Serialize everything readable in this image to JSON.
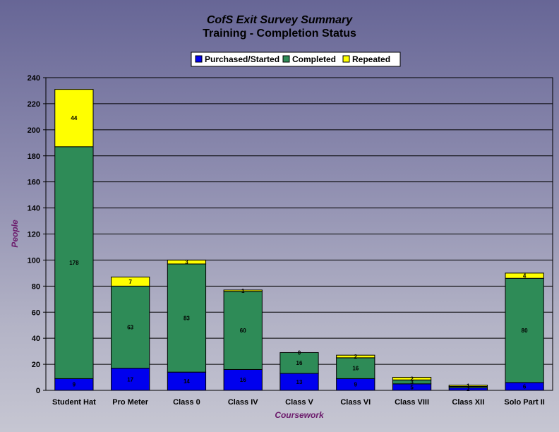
{
  "chart_data": {
    "type": "bar",
    "stacked": true,
    "title": "CofS Exit Survey Summary",
    "subtitle": "Training - Completion Status",
    "xlabel": "Coursework",
    "ylabel": "People",
    "ylim": [
      0,
      240
    ],
    "ytick_step": 20,
    "grid": true,
    "legend_position": "top",
    "categories": [
      "Student Hat",
      "Pro Meter",
      "Class 0",
      "Class IV",
      "Class V",
      "Class VI",
      "Class VIII",
      "Class XII",
      "Solo Part II"
    ],
    "series": [
      {
        "name": "Purchased/Started",
        "color": "#0000ee",
        "values": [
          9,
          17,
          14,
          16,
          13,
          9,
          5,
          2,
          6
        ]
      },
      {
        "name": "Completed",
        "color": "#2e8b57",
        "values": [
          178,
          63,
          83,
          60,
          16,
          16,
          3,
          1,
          80
        ]
      },
      {
        "name": "Repeated",
        "color": "#ffff00",
        "values": [
          44,
          7,
          3,
          1,
          0,
          2,
          2,
          1,
          4
        ]
      }
    ],
    "data_labels": [
      [
        "9",
        "17",
        "14",
        "16",
        "13",
        "9",
        "5",
        "2",
        "6"
      ],
      [
        "178",
        "63",
        "83",
        "60",
        "16",
        "16",
        "3",
        "",
        "80"
      ],
      [
        "44",
        "7",
        "3",
        "1",
        "0",
        "2",
        "2",
        "1",
        "4"
      ]
    ]
  }
}
